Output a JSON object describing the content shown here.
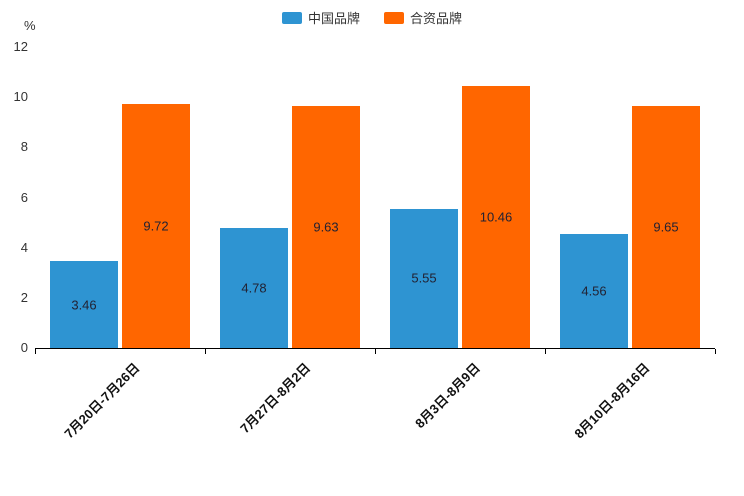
{
  "chart_data": {
    "type": "bar",
    "categories": [
      "7月20日-7月26日",
      "7月27日-8月2日",
      "8月3日-8月9日",
      "8月10日-8月16日"
    ],
    "series": [
      {
        "name": "中国品牌",
        "color": "#2E94D2",
        "values": [
          3.46,
          4.78,
          5.55,
          4.56
        ]
      },
      {
        "name": "合资品牌",
        "color": "#FF6600",
        "values": [
          9.72,
          9.63,
          10.46,
          9.65
        ]
      }
    ],
    "title": "",
    "xlabel": "",
    "ylabel": "%",
    "ylim": [
      0,
      12
    ],
    "yticks": [
      0,
      2,
      4,
      6,
      8,
      10,
      12
    ],
    "grid": false,
    "legend_position": "top",
    "axis_color": "#000000",
    "tick_text_color": "#333333",
    "value_label_color": "#222233"
  }
}
